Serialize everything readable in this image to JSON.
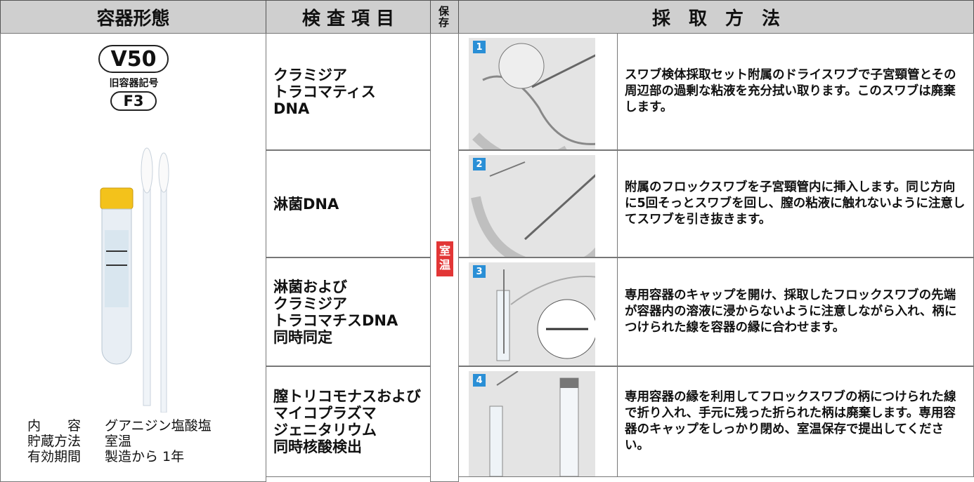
{
  "header": {
    "container": "容器形態",
    "test_items": "検 査 項 目",
    "storage": "保存",
    "method": "採　取　方　法"
  },
  "container": {
    "code": "V50",
    "old_label": "旧容器記号",
    "old_code": "F3",
    "specs": [
      {
        "label": "内　　容",
        "value": "グアニジン塩酸塩"
      },
      {
        "label": "貯蔵方法",
        "value": "室温"
      },
      {
        "label": "有効期間",
        "value": "製造から 1年"
      }
    ]
  },
  "storage": "室温",
  "rows": [
    {
      "test": "クラミジア\nトラコマティス\nDNA",
      "step": "1",
      "text": "スワブ検体採取セット附属のドライスワブで子宮頸管とその周辺部の過剰な粘液を充分拭い取ります。このスワブは廃棄します。"
    },
    {
      "test": "淋菌DNA",
      "step": "2",
      "text": "附属のフロックスワブを子宮頸管内に挿入します。同じ方向に5回そっとスワブを回し、膣の粘液に触れないように注意してスワブを引き抜きます。"
    },
    {
      "test": "淋菌および\nクラミジア\nトラコマチスDNA\n同時同定",
      "step": "3",
      "text": "専用容器のキャップを開け、採取したフロックスワブの先端が容器内の溶液に浸からないように注意しながら入れ、柄につけられた線を容器の縁に合わせます。"
    },
    {
      "test": "膣トリコモナスおよび\nマイコプラズマ\nジェニタリウム\n同時核酸検出",
      "step": "4",
      "text": "専用容器の縁を利用してフロックスワブの柄につけられた線で折り入れ、手元に残った折られた柄は廃棄します。専用容器のキャップをしっかり閉め、室温保存で提出してください。"
    }
  ]
}
